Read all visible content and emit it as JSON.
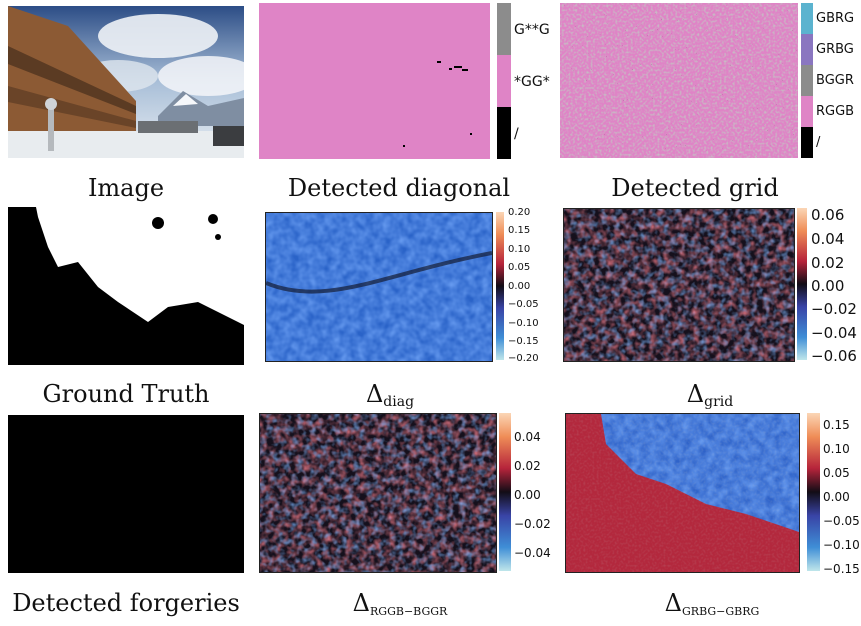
{
  "figure": {
    "captions": {
      "image": "Image",
      "detected_diagonal": "Detected diagonal",
      "detected_grid": "Detected grid",
      "ground_truth": "Ground Truth",
      "delta_diag_main": "Δ",
      "delta_diag_sub": "diag",
      "delta_grid_main": "Δ",
      "delta_grid_sub": "grid",
      "detected_forgeries": "Detected forgeries",
      "delta_rggb_main": "Δ",
      "delta_rggb_sub": "RGGB−BGGR",
      "delta_grbg_main": "Δ",
      "delta_grbg_sub": "GRBG−GBRG"
    },
    "diag_legend": [
      "G**G",
      "*GG*",
      "/"
    ],
    "grid_legend": [
      "GBRG",
      "GRBG",
      "BGGR",
      "RGGB",
      "/"
    ],
    "legend_colors": {
      "gbrg": "#5bb3cf",
      "grbg": "#8a76c0",
      "bggr": "#8c8c8c",
      "rggb": "#df84c6",
      "none": "#000000",
      "diag_gg": "#8c8c8c",
      "diag_pink": "#df84c6"
    },
    "cbar_delta_diag": [
      "0.20",
      "0.15",
      "0.10",
      "0.05",
      "0.00",
      "−0.05",
      "−0.10",
      "−0.15",
      "−0.20"
    ],
    "cbar_delta_grid": [
      "0.06",
      "0.04",
      "0.02",
      "0.00",
      "−0.02",
      "−0.04",
      "−0.06"
    ],
    "cbar_delta_rggb": [
      "0.04",
      "0.02",
      "0.00",
      "−0.02",
      "−0.04"
    ],
    "cbar_delta_grbg": [
      "0.15",
      "0.10",
      "0.05",
      "0.00",
      "−0.05",
      "−0.10",
      "−0.15"
    ]
  }
}
